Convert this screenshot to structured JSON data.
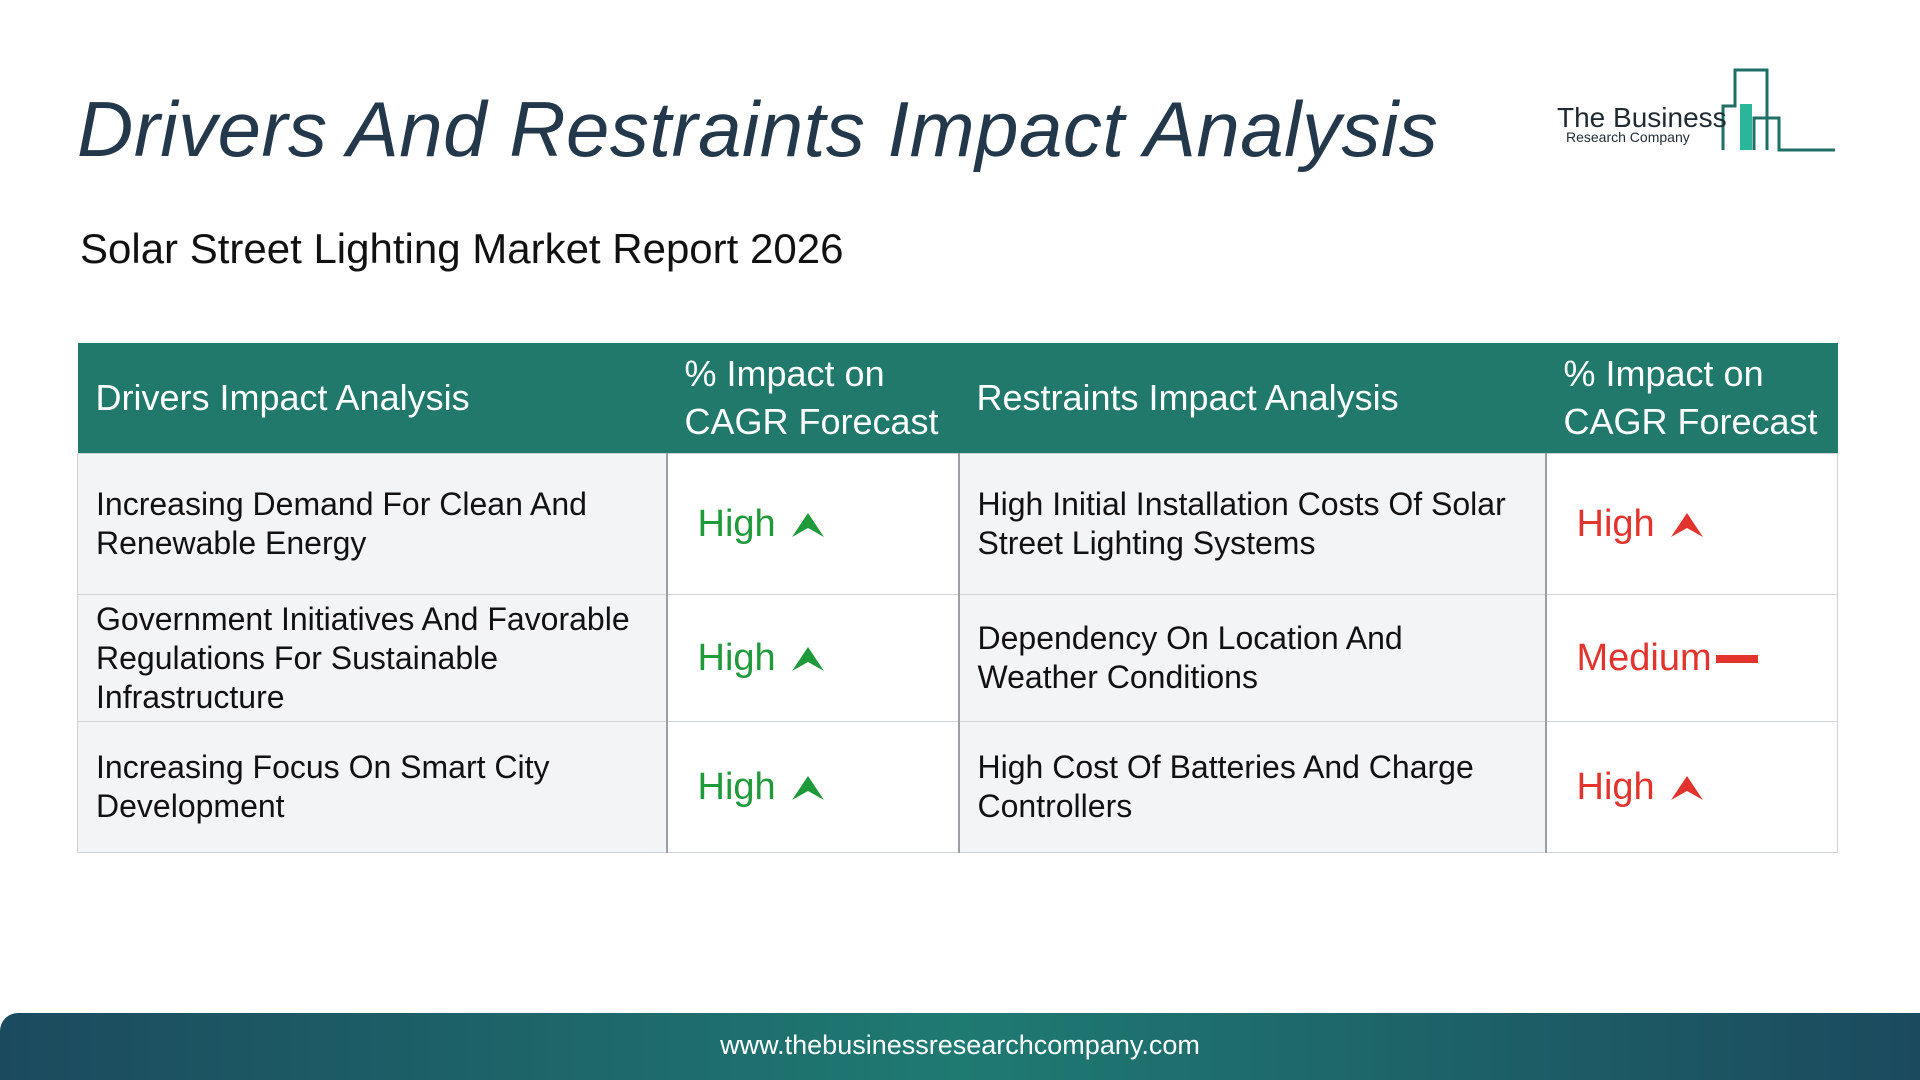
{
  "header": {
    "title": "Drivers And Restraints Impact Analysis",
    "subtitle": "Solar Street Lighting Market Report 2026"
  },
  "logo": {
    "name": "The Business",
    "tagline": "Research Company"
  },
  "table": {
    "columns": [
      "Drivers Impact Analysis",
      "% Impact on CAGR Forecast",
      "Restraints Impact Analysis",
      "% Impact on CAGR Forecast"
    ],
    "rows": [
      {
        "driver": "Increasing Demand For Clean And Renewable Energy",
        "driver_impact": "High",
        "driver_impact_icon": "up-arrow-icon",
        "restraint": "High Initial Installation Costs Of Solar Street Lighting Systems",
        "restraint_impact": "High",
        "restraint_impact_icon": "up-arrow-icon"
      },
      {
        "driver": "Government Initiatives And Favorable Regulations For Sustainable Infrastructure",
        "driver_impact": "High",
        "driver_impact_icon": "up-arrow-icon",
        "restraint": "Dependency On Location And Weather Conditions",
        "restraint_impact": "Medium",
        "restraint_impact_icon": "dash-icon"
      },
      {
        "driver": "Increasing Focus On Smart City Development",
        "driver_impact": "High",
        "driver_impact_icon": "up-arrow-icon",
        "restraint": "High Cost Of Batteries And Charge Controllers",
        "restraint_impact": "High",
        "restraint_impact_icon": "up-arrow-icon"
      }
    ]
  },
  "footer": {
    "url": "www.thebusinessresearchcompany.com"
  },
  "colors": {
    "header_bg": "#20796a",
    "driver_impact": "#1f9a3a",
    "restraint_impact": "#e2332d",
    "title": "#23384a"
  }
}
